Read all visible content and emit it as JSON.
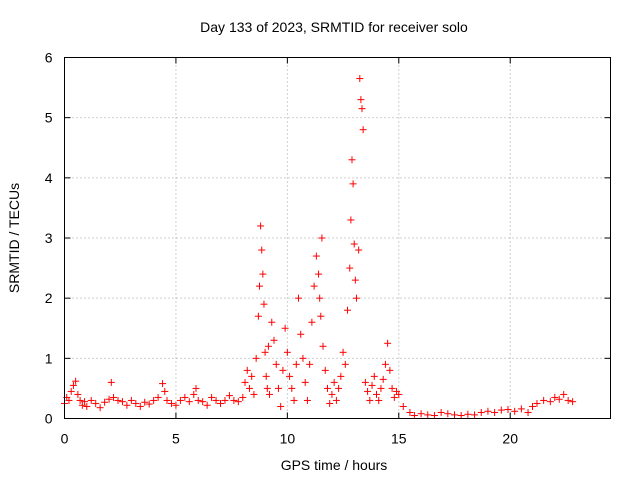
{
  "chart_data": {
    "type": "scatter",
    "title": "Day 133 of 2023, SRMTID for receiver solo",
    "xlabel": "GPS time / hours",
    "ylabel": "SRMTID / TECUs",
    "xlim": [
      0,
      24.5
    ],
    "ylim": [
      0,
      6
    ],
    "xticks": [
      0,
      5,
      10,
      15,
      20
    ],
    "xtick_labels": [
      "0",
      "5",
      "10",
      "15",
      "20"
    ],
    "yticks": [
      0,
      1,
      2,
      3,
      4,
      5,
      6
    ],
    "ytick_labels": [
      "0",
      "1",
      "2",
      "3",
      "4",
      "5",
      "6"
    ],
    "grid": true,
    "marker": "plus",
    "color": "#ff0000",
    "series": [
      {
        "name": "SRMTID",
        "x": [
          0.0,
          0.1,
          0.2,
          0.3,
          0.4,
          0.5,
          0.6,
          0.7,
          0.8,
          0.9,
          1.0,
          1.2,
          1.4,
          1.6,
          1.8,
          2.0,
          2.1,
          2.2,
          2.4,
          2.6,
          2.8,
          3.0,
          3.2,
          3.4,
          3.6,
          3.8,
          4.0,
          4.2,
          4.4,
          4.5,
          4.6,
          4.8,
          5.0,
          5.2,
          5.4,
          5.6,
          5.8,
          5.9,
          6.0,
          6.2,
          6.4,
          6.6,
          6.8,
          7.0,
          7.2,
          7.4,
          7.6,
          7.8,
          8.0,
          8.1,
          8.2,
          8.3,
          8.4,
          8.5,
          8.6,
          8.7,
          8.75,
          8.8,
          8.85,
          8.9,
          8.95,
          9.0,
          9.05,
          9.1,
          9.15,
          9.2,
          9.3,
          9.4,
          9.5,
          9.6,
          9.7,
          9.8,
          9.9,
          10.0,
          10.1,
          10.2,
          10.3,
          10.4,
          10.5,
          10.6,
          10.7,
          10.8,
          10.9,
          11.0,
          11.1,
          11.2,
          11.3,
          11.4,
          11.45,
          11.5,
          11.55,
          11.6,
          11.7,
          11.8,
          11.9,
          12.0,
          12.1,
          12.2,
          12.3,
          12.4,
          12.5,
          12.6,
          12.7,
          12.8,
          12.85,
          12.9,
          12.95,
          13.0,
          13.05,
          13.1,
          13.2,
          13.25,
          13.3,
          13.35,
          13.4,
          13.5,
          13.6,
          13.7,
          13.8,
          13.9,
          14.0,
          14.1,
          14.2,
          14.3,
          14.4,
          14.5,
          14.6,
          14.7,
          14.8,
          14.9,
          15.0,
          15.2,
          15.5,
          15.7,
          16.0,
          16.3,
          16.6,
          16.9,
          17.2,
          17.5,
          17.8,
          18.1,
          18.4,
          18.7,
          19.0,
          19.3,
          19.6,
          19.9,
          20.2,
          20.5,
          20.8,
          21.0,
          21.2,
          21.5,
          21.8,
          22.0,
          22.2,
          22.4,
          22.6,
          22.8
        ],
        "y": [
          0.25,
          0.35,
          0.3,
          0.45,
          0.55,
          0.62,
          0.4,
          0.3,
          0.22,
          0.28,
          0.2,
          0.3,
          0.25,
          0.18,
          0.27,
          0.32,
          0.6,
          0.35,
          0.3,
          0.28,
          0.22,
          0.3,
          0.25,
          0.2,
          0.27,
          0.24,
          0.3,
          0.35,
          0.58,
          0.45,
          0.3,
          0.25,
          0.22,
          0.3,
          0.35,
          0.28,
          0.4,
          0.5,
          0.3,
          0.28,
          0.22,
          0.35,
          0.3,
          0.25,
          0.3,
          0.38,
          0.3,
          0.28,
          0.35,
          0.6,
          0.8,
          0.5,
          0.7,
          0.4,
          1.0,
          1.7,
          2.2,
          3.2,
          2.8,
          2.4,
          1.9,
          1.1,
          0.7,
          0.5,
          1.2,
          0.4,
          1.6,
          1.3,
          0.9,
          0.5,
          0.2,
          0.8,
          1.5,
          1.1,
          0.7,
          0.5,
          0.3,
          0.9,
          2.0,
          1.4,
          1.0,
          0.6,
          0.3,
          0.9,
          1.6,
          2.2,
          2.7,
          2.4,
          2.0,
          1.7,
          3.0,
          1.2,
          0.8,
          0.5,
          0.25,
          0.4,
          0.6,
          0.3,
          0.5,
          0.7,
          1.1,
          0.9,
          1.8,
          2.5,
          3.3,
          4.3,
          3.9,
          2.9,
          2.3,
          2.0,
          2.8,
          5.65,
          5.3,
          5.15,
          4.8,
          0.6,
          0.45,
          0.3,
          0.55,
          0.7,
          0.4,
          0.3,
          0.5,
          0.65,
          0.9,
          1.25,
          0.8,
          0.5,
          0.35,
          0.45,
          0.4,
          0.2,
          0.1,
          0.05,
          0.08,
          0.06,
          0.05,
          0.1,
          0.08,
          0.06,
          0.05,
          0.07,
          0.06,
          0.1,
          0.12,
          0.1,
          0.14,
          0.15,
          0.12,
          0.16,
          0.1,
          0.2,
          0.25,
          0.3,
          0.28,
          0.35,
          0.32,
          0.4,
          0.3,
          0.28
        ]
      }
    ]
  }
}
